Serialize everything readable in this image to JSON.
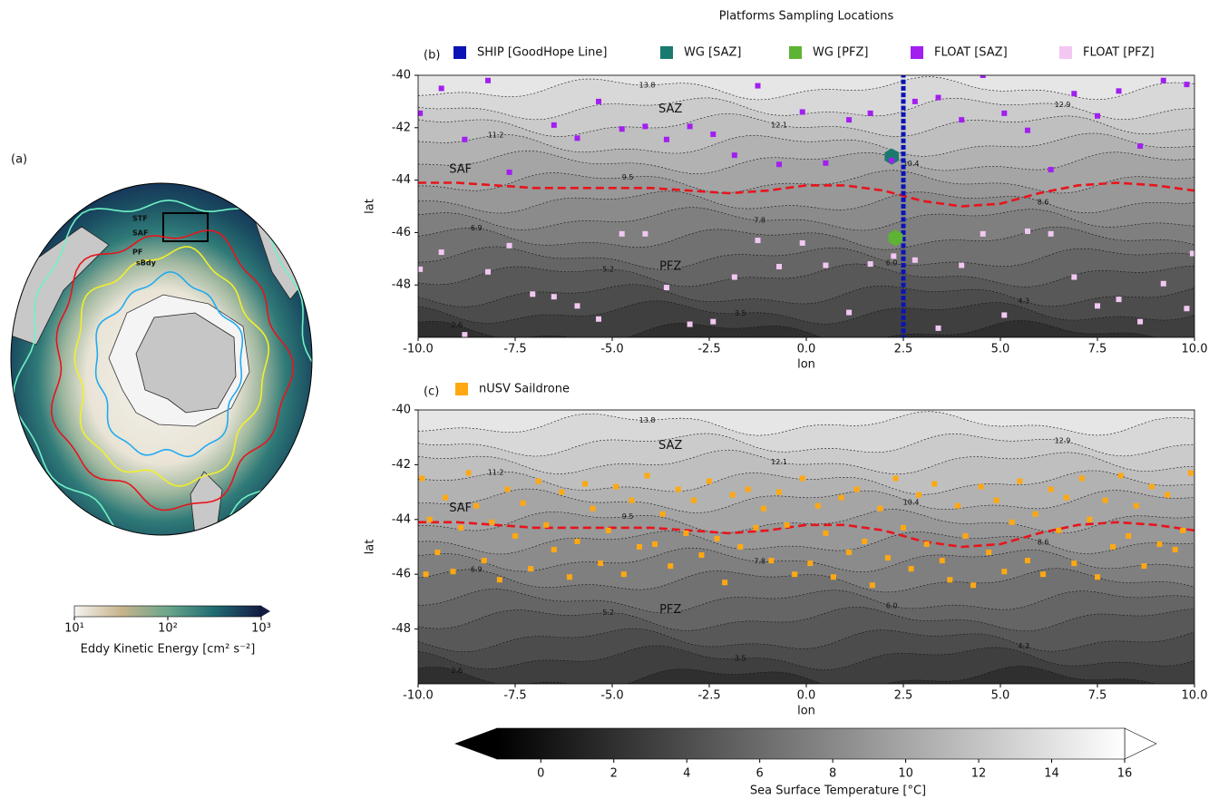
{
  "chart_data": [
    {
      "type": "map",
      "label": "(a)",
      "fronts": [
        {
          "name": "STF",
          "color": "#6ff2c4"
        },
        {
          "name": "SAF",
          "color": "#e8141c"
        },
        {
          "name": "PF",
          "color": "#f2ef2a"
        },
        {
          "name": "sBdy",
          "color": "#22aaf0"
        }
      ],
      "colorbar": {
        "label": "Eddy Kinetic Energy [cm² s⁻²]",
        "log": true,
        "xlim": [
          10,
          1000
        ],
        "xticks": [
          {
            "value": 10,
            "label": "10¹"
          },
          {
            "value": 100,
            "label": "10²"
          },
          {
            "value": 1000,
            "label": "10³"
          }
        ],
        "colors": [
          "#f4f4f0",
          "#c8b38c",
          "#6aa68c",
          "#1f6b72",
          "#151c44"
        ]
      }
    },
    {
      "type": "scatter",
      "title": "Platforms Sampling Locations",
      "label": "(b)",
      "xlabel": "lon",
      "ylabel": "lat",
      "xlim": [
        -10,
        10
      ],
      "ylim": [
        -50,
        -40
      ],
      "xticks": [
        {
          "value": -10,
          "label": "-10.0"
        },
        {
          "value": -7.5,
          "label": "-7.5"
        },
        {
          "value": -5,
          "label": "-5.0"
        },
        {
          "value": -2.5,
          "label": "-2.5"
        },
        {
          "value": 0,
          "label": "0.0"
        },
        {
          "value": 2.5,
          "label": "2.5"
        },
        {
          "value": 5,
          "label": "5.0"
        },
        {
          "value": 7.5,
          "label": "7.5"
        },
        {
          "value": 10,
          "label": "10.0"
        }
      ],
      "yticks": [
        -48,
        -46,
        -44,
        -42,
        -40
      ],
      "zones": [
        "SAZ",
        "PFZ"
      ],
      "contour_levels": [
        2.6,
        3.5,
        4.3,
        5.2,
        {
          "value": 6,
          "label": "6.0"
        },
        6.9,
        7.8,
        8.6,
        9.5,
        10.4,
        11.2,
        12.1,
        12.9,
        13.8
      ],
      "front": {
        "name": "SAF",
        "color": "#e8141c",
        "x": [
          -10,
          -9,
          -8,
          -7,
          -6,
          -5,
          -4,
          -3,
          -2,
          -1,
          0,
          1,
          2,
          3,
          4,
          5,
          6,
          7,
          8,
          9,
          10
        ],
        "y": [
          -44.1,
          -44.1,
          -44.2,
          -44.3,
          -44.3,
          -44.3,
          -44.3,
          -44.4,
          -44.5,
          -44.4,
          -44.2,
          -44.2,
          -44.4,
          -44.8,
          -45.0,
          -44.9,
          -44.5,
          -44.2,
          -44.1,
          -44.2,
          -44.4
        ]
      },
      "series": [
        {
          "name": "SHIP [GoodHope Line]",
          "color": "#0a14b4",
          "marker": "square",
          "x": [
            2.5,
            2.5,
            2.5,
            2.5,
            2.5,
            2.5,
            2.5,
            2.5,
            2.5,
            2.5,
            2.5,
            2.5,
            2.5,
            2.5,
            2.5,
            2.5,
            2.5,
            2.5,
            2.5,
            2.5,
            2.5,
            2.5,
            2.5,
            2.5,
            2.5,
            2.5,
            2.5,
            2.5,
            2.5,
            2.5,
            2.5,
            2.5,
            2.5,
            2.5,
            2.5,
            2.5,
            2.5,
            2.5,
            2.5,
            2.5,
            2.5
          ],
          "values": [
            -40,
            -40.25,
            -40.5,
            -40.75,
            -41,
            -41.25,
            -41.5,
            -41.75,
            -42,
            -42.25,
            -42.5,
            -42.75,
            -43,
            -43.25,
            -43.5,
            -43.75,
            -44,
            -44.25,
            -44.5,
            -44.75,
            -45,
            -45.25,
            -45.5,
            -45.75,
            -46,
            -46.25,
            -46.5,
            -46.75,
            -47,
            -47.25,
            -47.5,
            -47.75,
            -48,
            -48.25,
            -48.5,
            -48.75,
            -49,
            -49.25,
            -49.5,
            -49.75,
            -50
          ]
        },
        {
          "name": "WG [SAZ]",
          "color": "#1a7a6e",
          "marker": "hexagon",
          "x": [
            2.2
          ],
          "values": [
            -43.1
          ]
        },
        {
          "name": "WG [PFZ]",
          "color": "#5db333",
          "marker": "hexagon",
          "x": [
            2.3
          ],
          "values": [
            -46.2
          ]
        },
        {
          "name": "FLOAT [SAZ]",
          "color": "#a21ff0",
          "marker": "square",
          "x": [
            -9.95,
            -9.4,
            -8.2,
            -8.8,
            -7.65,
            -6.5,
            -5.9,
            -5.35,
            -4.75,
            -4.15,
            -3.6,
            -3.0,
            -2.4,
            -1.85,
            -1.25,
            -0.7,
            -0.1,
            0.5,
            1.1,
            1.65,
            2.2,
            2.8,
            3.4,
            4.0,
            4.55,
            5.1,
            5.7,
            6.3,
            6.9,
            7.5,
            8.05,
            8.6,
            9.2,
            9.8
          ],
          "values": [
            -41.45,
            -40.5,
            -40.2,
            -42.45,
            -43.7,
            -41.9,
            -42.4,
            -41.0,
            -42.05,
            -41.95,
            -42.45,
            -41.95,
            -42.25,
            -43.05,
            -40.4,
            -43.4,
            -41.4,
            -43.35,
            -41.7,
            -41.45,
            -43.25,
            -41.0,
            -40.85,
            -41.7,
            -40.0,
            -41.45,
            -42.1,
            -43.6,
            -40.7,
            -41.55,
            -40.6,
            -42.7,
            -40.2,
            -40.35
          ]
        },
        {
          "name": "FLOAT [PFZ]",
          "color": "#f2c8f2",
          "marker": "square",
          "x": [
            -9.95,
            -9.4,
            -8.8,
            -8.2,
            -7.65,
            -7.05,
            -6.5,
            -5.9,
            -5.35,
            -4.75,
            -4.15,
            -3.6,
            -3.0,
            -2.4,
            -1.85,
            -1.25,
            -0.7,
            -0.1,
            0.5,
            1.1,
            1.65,
            2.25,
            2.8,
            3.4,
            4.0,
            4.55,
            5.1,
            5.7,
            6.3,
            6.9,
            7.5,
            8.05,
            8.6,
            9.2,
            9.8,
            9.95
          ],
          "values": [
            -47.4,
            -46.75,
            -49.9,
            -47.5,
            -46.5,
            -48.35,
            -48.45,
            -48.8,
            -49.3,
            -46.05,
            -46.05,
            -48.1,
            -49.5,
            -49.4,
            -47.7,
            -46.3,
            -47.3,
            -46.4,
            -47.25,
            -49.05,
            -47.2,
            -46.9,
            -47.05,
            -49.65,
            -47.25,
            -46.05,
            -49.15,
            -45.95,
            -46.05,
            -47.7,
            -48.8,
            -48.55,
            -49.4,
            -47.95,
            -48.9,
            -46.8
          ]
        }
      ]
    },
    {
      "type": "scatter",
      "label": "(c)",
      "xlabel": "lon",
      "ylabel": "lat",
      "xlim": [
        -10,
        10
      ],
      "ylim": [
        -50,
        -40
      ],
      "xticks": [
        {
          "value": -10,
          "label": "-10.0"
        },
        {
          "value": -7.5,
          "label": "-7.5"
        },
        {
          "value": -5,
          "label": "-5.0"
        },
        {
          "value": -2.5,
          "label": "-2.5"
        },
        {
          "value": 0,
          "label": "0.0"
        },
        {
          "value": 2.5,
          "label": "2.5"
        },
        {
          "value": 5,
          "label": "5.0"
        },
        {
          "value": 7.5,
          "label": "7.5"
        },
        {
          "value": 10,
          "label": "10.0"
        }
      ],
      "yticks": [
        -48,
        -46,
        -44,
        -42,
        -40
      ],
      "zones": [
        "SAZ",
        "PFZ"
      ],
      "contour_levels": [
        2.6,
        3.5,
        4.3,
        5.2,
        {
          "value": 6,
          "label": "6.0"
        },
        6.9,
        7.8,
        8.6,
        9.5,
        10.4,
        11.2,
        12.1,
        12.9,
        13.8
      ],
      "front": {
        "name": "SAF",
        "color": "#e8141c",
        "x": [
          -10,
          -9,
          -8,
          -7,
          -6,
          -5,
          -4,
          -3,
          -2,
          -1,
          0,
          1,
          2,
          3,
          4,
          5,
          6,
          7,
          8,
          9,
          10
        ],
        "y": [
          -44.1,
          -44.1,
          -44.2,
          -44.3,
          -44.3,
          -44.3,
          -44.3,
          -44.4,
          -44.5,
          -44.4,
          -44.2,
          -44.2,
          -44.4,
          -44.8,
          -45.0,
          -44.9,
          -44.5,
          -44.2,
          -44.1,
          -44.2,
          -44.4
        ]
      },
      "series": [
        {
          "name": "nUSV Saildrone",
          "color": "#ffa812",
          "marker": "square",
          "x": [
            -9.9,
            -9.8,
            -9.7,
            -9.5,
            -9.3,
            -9.1,
            -8.9,
            -8.7,
            -8.5,
            -8.3,
            -8.1,
            -7.9,
            -7.7,
            -7.5,
            -7.3,
            -7.1,
            -6.9,
            -6.7,
            -6.5,
            -6.3,
            -6.1,
            -5.9,
            -5.7,
            -5.5,
            -5.3,
            -5.1,
            -4.9,
            -4.7,
            -4.5,
            -4.3,
            -4.1,
            -3.9,
            -3.7,
            -3.5,
            -3.3,
            -3.1,
            -2.9,
            -2.7,
            -2.5,
            -2.3,
            -2.1,
            -1.9,
            -1.7,
            -1.5,
            -1.3,
            -1.1,
            -0.9,
            -0.7,
            -0.5,
            -0.3,
            -0.1,
            0.1,
            0.3,
            0.5,
            0.7,
            0.9,
            1.1,
            1.3,
            1.5,
            1.7,
            1.9,
            2.1,
            2.3,
            2.5,
            2.7,
            2.9,
            3.1,
            3.3,
            3.5,
            3.7,
            3.9,
            4.1,
            4.3,
            4.5,
            4.7,
            4.9,
            5.1,
            5.3,
            5.5,
            5.7,
            5.9,
            6.1,
            6.3,
            6.5,
            6.7,
            6.9,
            7.1,
            7.3,
            7.5,
            7.7,
            7.9,
            8.1,
            8.3,
            8.5,
            8.7,
            8.9,
            9.1,
            9.3,
            9.5,
            9.7,
            9.9
          ],
          "values": [
            -42.5,
            -46.0,
            -44.0,
            -45.2,
            -43.2,
            -45.9,
            -44.3,
            -42.3,
            -43.5,
            -45.5,
            -44.1,
            -46.2,
            -42.9,
            -44.6,
            -43.4,
            -45.8,
            -42.6,
            -44.2,
            -45.1,
            -43.0,
            -46.1,
            -44.8,
            -42.7,
            -43.6,
            -45.6,
            -44.4,
            -42.8,
            -46.0,
            -43.3,
            -45.0,
            -42.4,
            -44.9,
            -43.8,
            -45.7,
            -42.9,
            -44.5,
            -43.3,
            -45.3,
            -42.6,
            -44.7,
            -46.3,
            -43.1,
            -45.0,
            -42.9,
            -44.3,
            -43.6,
            -45.5,
            -43.0,
            -44.2,
            -46.0,
            -42.5,
            -45.6,
            -43.5,
            -44.5,
            -46.1,
            -43.2,
            -45.2,
            -42.9,
            -44.8,
            -46.4,
            -43.6,
            -45.4,
            -42.5,
            -44.3,
            -45.8,
            -43.1,
            -44.9,
            -42.7,
            -45.5,
            -46.2,
            -43.5,
            -44.6,
            -46.4,
            -42.8,
            -45.2,
            -43.3,
            -45.9,
            -44.1,
            -42.6,
            -45.5,
            -43.8,
            -46.0,
            -42.9,
            -44.4,
            -43.2,
            -45.6,
            -42.5,
            -44.0,
            -46.1,
            -43.3,
            -45.0,
            -42.4,
            -44.6,
            -43.5,
            -45.7,
            -42.8,
            -44.9,
            -43.1,
            -45.1,
            -44.4,
            -42.3
          ]
        }
      ]
    },
    {
      "type": "colorbar",
      "label": "Sea Surface Temperature [°C]",
      "xlim": [
        -1.2,
        16
      ],
      "xticks": [
        0,
        2,
        4,
        6,
        8,
        10,
        12,
        14,
        16
      ],
      "colors": [
        "#000000",
        "#ffffff"
      ],
      "extend": "both"
    }
  ]
}
